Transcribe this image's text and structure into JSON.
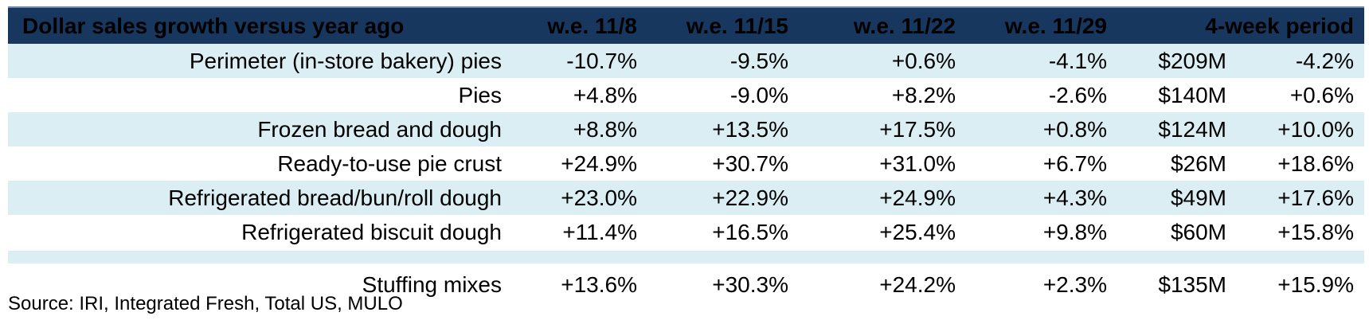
{
  "header": {
    "title": "Dollar sales growth versus year ago",
    "columns": [
      "w.e. 11/8",
      "w.e. 11/15",
      "w.e. 11/22",
      "w.e. 11/29",
      "4-week period"
    ]
  },
  "rows": [
    {
      "label": "Perimeter (in-store bakery) pies",
      "w1": "-10.7%",
      "w2": "-9.5%",
      "w3": "+0.6%",
      "w4": "-4.1%",
      "sales": "$209M",
      "period": "-4.2%"
    },
    {
      "label": "Pies",
      "w1": "+4.8%",
      "w2": "-9.0%",
      "w3": "+8.2%",
      "w4": "-2.6%",
      "sales": "$140M",
      "period": "+0.6%"
    },
    {
      "label": "Frozen bread and dough",
      "w1": "+8.8%",
      "w2": "+13.5%",
      "w3": "+17.5%",
      "w4": "+0.8%",
      "sales": "$124M",
      "period": "+10.0%"
    },
    {
      "label": "Ready-to-use pie crust",
      "w1": "+24.9%",
      "w2": "+30.7%",
      "w3": "+31.0%",
      "w4": "+6.7%",
      "sales": "$26M",
      "period": "+18.6%"
    },
    {
      "label": "Refrigerated bread/bun/roll dough",
      "w1": "+23.0%",
      "w2": "+22.9%",
      "w3": "+24.9%",
      "w4": "+4.3%",
      "sales": "$49M",
      "period": "+17.6%"
    },
    {
      "label": "Refrigerated biscuit dough",
      "w1": "+11.4%",
      "w2": "+16.5%",
      "w3": "+25.4%",
      "w4": "+9.8%",
      "sales": "$60M",
      "period": "+15.8%"
    }
  ],
  "extra_row": {
    "label": "Stuffing mixes",
    "w1": "+13.6%",
    "w2": "+30.3%",
    "w3": "+24.2%",
    "w4": "+2.3%",
    "sales": "$135M",
    "period": "+15.9%"
  },
  "source": "Source: IRI, Integrated Fresh, Total US, MULO",
  "colors": {
    "header_bg": "#17375E",
    "shade": "#DAEEF3"
  }
}
